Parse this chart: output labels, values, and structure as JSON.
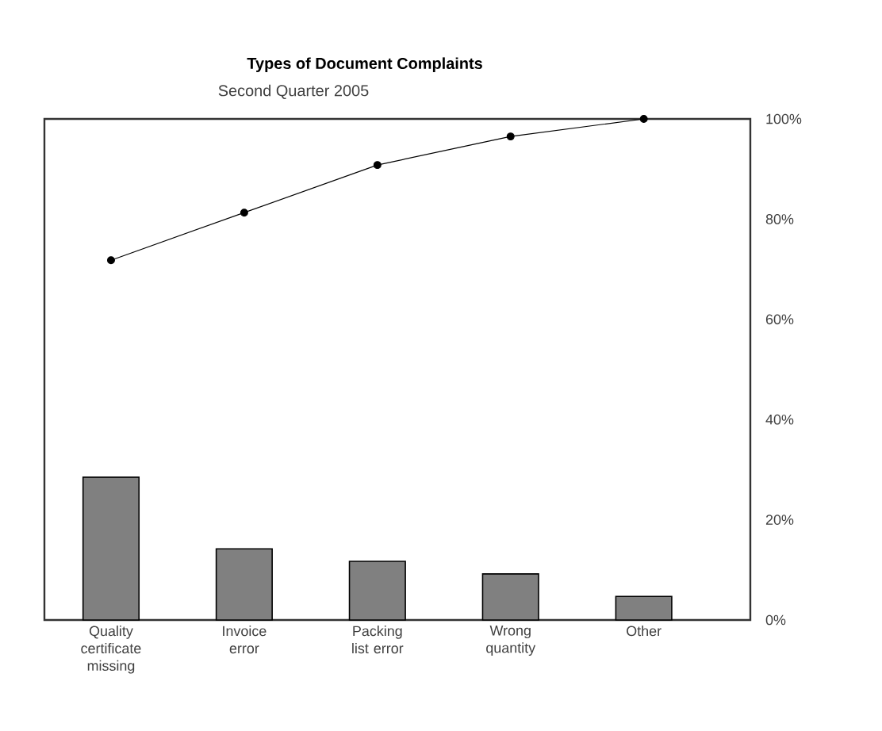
{
  "chart_data": {
    "type": "bar",
    "title": "Types of Document Complaints",
    "subtitle": "Second Quarter 2005",
    "categories": [
      "Quality certificate missing",
      "Invoice error",
      "Packing list error",
      "Wrong quantity",
      "Other"
    ],
    "series": [
      {
        "color": "#808080",
        "values": [
          28.5,
          14.2,
          11.7,
          9.2,
          4.7
        ]
      },
      {
        "type": "line",
        "color": "#000000",
        "marker": "circle",
        "values": [
          71.8,
          81.3,
          90.8,
          96.5,
          100
        ]
      }
    ],
    "ylim": [
      0,
      100
    ],
    "yticks": [
      {
        "value": 0,
        "label": "0%"
      },
      {
        "value": 20,
        "label": "20%"
      },
      {
        "value": 40,
        "label": "40%"
      },
      {
        "value": 60,
        "label": "60%"
      },
      {
        "value": 80,
        "label": "80%"
      },
      {
        "value": 100,
        "label": "100%"
      }
    ]
  }
}
